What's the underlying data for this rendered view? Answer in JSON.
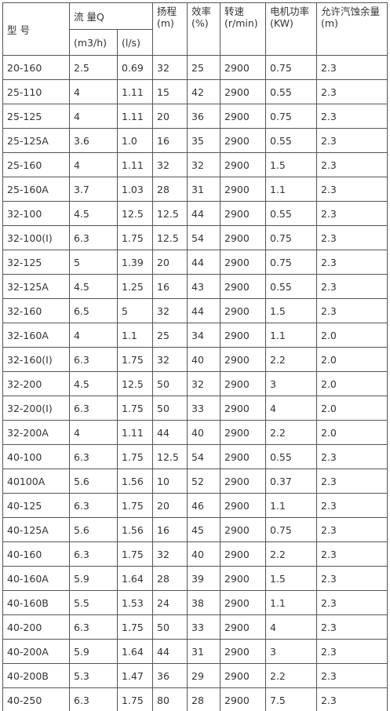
{
  "table": {
    "header": {
      "model": "型 号",
      "flow": "流 量Q",
      "flow_m3h": "(m3/h)",
      "flow_ls": "(l/s)",
      "others": [
        [
          "扬程",
          "(m)"
        ],
        [
          "效率",
          "(%)"
        ],
        [
          "转速",
          "(r/min)"
        ],
        [
          "电机功率",
          "(KW)"
        ],
        [
          "允许汽蚀余量",
          "(m)"
        ]
      ]
    },
    "rows": [
      [
        "20-160",
        "2.5",
        "0.69",
        "32",
        "25",
        "2900",
        "0.75",
        "2.3"
      ],
      [
        "25-110",
        "4",
        "1.11",
        "15",
        "42",
        "2900",
        "0.55",
        "2.3"
      ],
      [
        "25-125",
        "4",
        "1.11",
        "20",
        "36",
        "2900",
        "0.75",
        "2.3"
      ],
      [
        "25-125A",
        "3.6",
        "1.0",
        "16",
        "35",
        "2900",
        "0.55",
        "2.3"
      ],
      [
        "25-160",
        "4",
        "1.11",
        "32",
        "32",
        "2900",
        "1.5",
        "2.3"
      ],
      [
        "25-160A",
        "3.7",
        "1.03",
        "28",
        "31",
        "2900",
        "1.1",
        "2.3"
      ],
      [
        "32-100",
        "4.5",
        "12.5",
        "12.5",
        "44",
        "2900",
        "0.55",
        "2.3"
      ],
      [
        "32-100(I)",
        "6.3",
        "1.75",
        "12.5",
        "54",
        "2900",
        "0.75",
        "2.3"
      ],
      [
        "32-125",
        "5",
        "1.39",
        "20",
        "44",
        "2900",
        "0.75",
        "2.3"
      ],
      [
        "32-125A",
        "4.5",
        "1.25",
        "16",
        "43",
        "2900",
        "0.55",
        "2.3"
      ],
      [
        "32-160",
        "6.5",
        "5",
        "32",
        "44",
        "2900",
        "1.5",
        "2.3"
      ],
      [
        "32-160A",
        "4",
        "1.1",
        "25",
        "34",
        "2900",
        "1.1",
        "2.0"
      ],
      [
        "32-160(I)",
        "6.3",
        "1.75",
        "32",
        "40",
        "2900",
        "2.2",
        "2.0"
      ],
      [
        "32-200",
        "4.5",
        "12.5",
        "50",
        "32",
        "2900",
        "3",
        "2.0"
      ],
      [
        "32-200(I)",
        "6.3",
        "1.75",
        "50",
        "33",
        "2900",
        "4",
        "2.0"
      ],
      [
        "32-200A",
        "4",
        "1.11",
        "44",
        "40",
        "2900",
        "2.2",
        "2.0"
      ],
      [
        "40-100",
        "6.3",
        "1.75",
        "12.5",
        "54",
        "2900",
        "0.55",
        "2.3"
      ],
      [
        "40100A",
        "5.6",
        "1.56",
        "10",
        "52",
        "2900",
        "0.37",
        "2.3"
      ],
      [
        "40-125",
        "6.3",
        "1.75",
        "20",
        "46",
        "2900",
        "1.1",
        "2.3"
      ],
      [
        "40-125A",
        "5.6",
        "1.56",
        "16",
        "45",
        "2900",
        "0.75",
        "2.3"
      ],
      [
        "40-160",
        "6.3",
        "1.75",
        "32",
        "40",
        "2900",
        "2.2",
        "2.3"
      ],
      [
        "40-160A",
        "5.9",
        "1.64",
        "28",
        "39",
        "2900",
        "1.5",
        "2.3"
      ],
      [
        "40-160B",
        "5.5",
        "1.53",
        "24",
        "38",
        "2900",
        "1.1",
        "2.3"
      ],
      [
        "40-200",
        "6.3",
        "1.75",
        "50",
        "33",
        "2900",
        "4",
        "2.3"
      ],
      [
        "40-200A",
        "5.9",
        "1.64",
        "44",
        "31",
        "2900",
        "3",
        "2.3"
      ],
      [
        "40-200B",
        "5.3",
        "1.47",
        "36",
        "29",
        "2900",
        "2.2",
        "2.3"
      ],
      [
        "40-250",
        "6.3",
        "1.75",
        "80",
        "28",
        "2900",
        "7.5",
        "2.3"
      ]
    ]
  }
}
